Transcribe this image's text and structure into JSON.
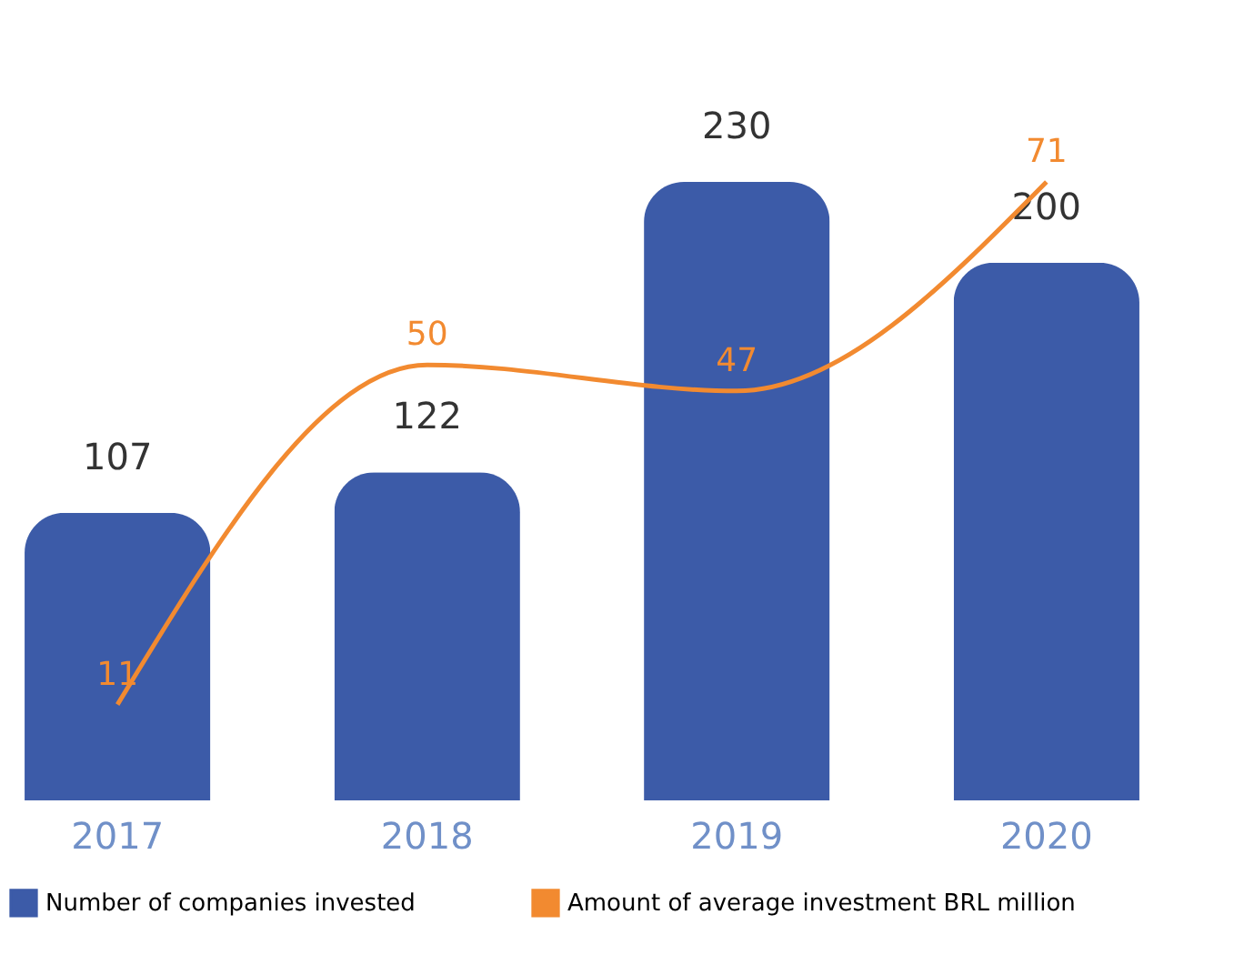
{
  "chart_data": {
    "type": "bar",
    "categories": [
      "2017",
      "2018",
      "2019",
      "2020"
    ],
    "series": [
      {
        "name": "Number of companies invested",
        "color": "#3c5ba8",
        "values": [
          107,
          122,
          230,
          200
        ]
      },
      {
        "name": "Amount of average investment BRL million",
        "type": "line",
        "axis": "y2",
        "color": "#f28a30",
        "values": [
          11,
          50,
          47,
          71
        ]
      }
    ],
    "data_labels": true,
    "legend": "bottom",
    "grid": false
  }
}
